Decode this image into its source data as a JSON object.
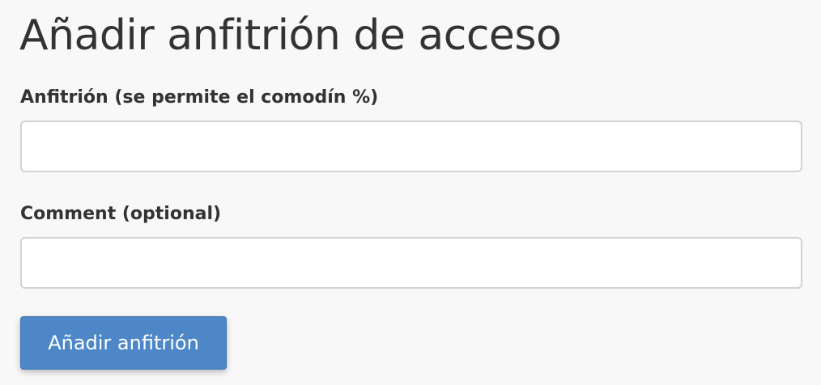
{
  "page": {
    "title": "Añadir anfitrión de acceso"
  },
  "form": {
    "host_label": "Anfitrión (se permite el comodín %)",
    "host_value": "",
    "host_placeholder": "",
    "comment_label": "Comment (optional)",
    "comment_value": "",
    "comment_placeholder": "",
    "submit_label": "Añadir anfitrión"
  },
  "colors": {
    "button": "#4e87c8",
    "background": "#f8f8f8"
  }
}
